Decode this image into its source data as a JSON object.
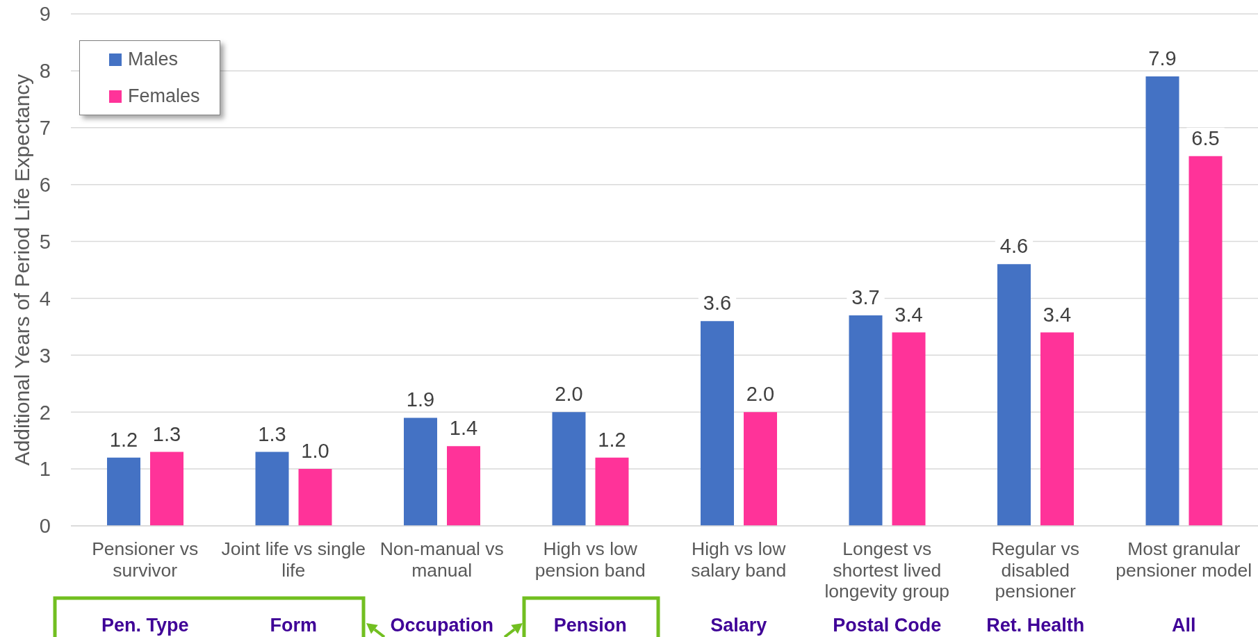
{
  "chart_data": {
    "type": "bar",
    "ylabel": "Additional Years of Period Life Expectancy",
    "categories": [
      "Pensioner vs survivor",
      "Joint life vs single life",
      "Non-manual vs manual",
      "High vs low pension band",
      "High vs low salary band",
      "Longest vs shortest lived longevity group",
      "Regular vs disabled pensioner",
      "Most granular pensioner model"
    ],
    "series": [
      {
        "name": "Males",
        "color": "#4472c4",
        "values": [
          1.2,
          1.3,
          1.9,
          2.0,
          3.6,
          3.7,
          4.6,
          7.9
        ],
        "value_labels": [
          "1.2",
          "1.3",
          "1.9",
          "2.0",
          "3.6",
          "3.7",
          "4.6",
          "7.9"
        ]
      },
      {
        "name": "Females",
        "color": "#ff3399",
        "values": [
          1.3,
          1.0,
          1.4,
          1.2,
          2.0,
          3.4,
          3.4,
          6.5
        ],
        "value_labels": [
          "1.3",
          "1.0",
          "1.4",
          "1.2",
          "2.0",
          "3.4",
          "3.4",
          "6.5"
        ]
      }
    ],
    "ylim": [
      0,
      9
    ],
    "yticks": [
      0,
      1,
      2,
      3,
      4,
      5,
      6,
      7,
      8,
      9
    ],
    "grid": "y",
    "legend": "top left",
    "annotations": [
      "Pen. Type",
      "Form",
      "Occupation",
      "Pension",
      "Salary",
      "Postal Code",
      "Ret. Health",
      "All"
    ]
  }
}
